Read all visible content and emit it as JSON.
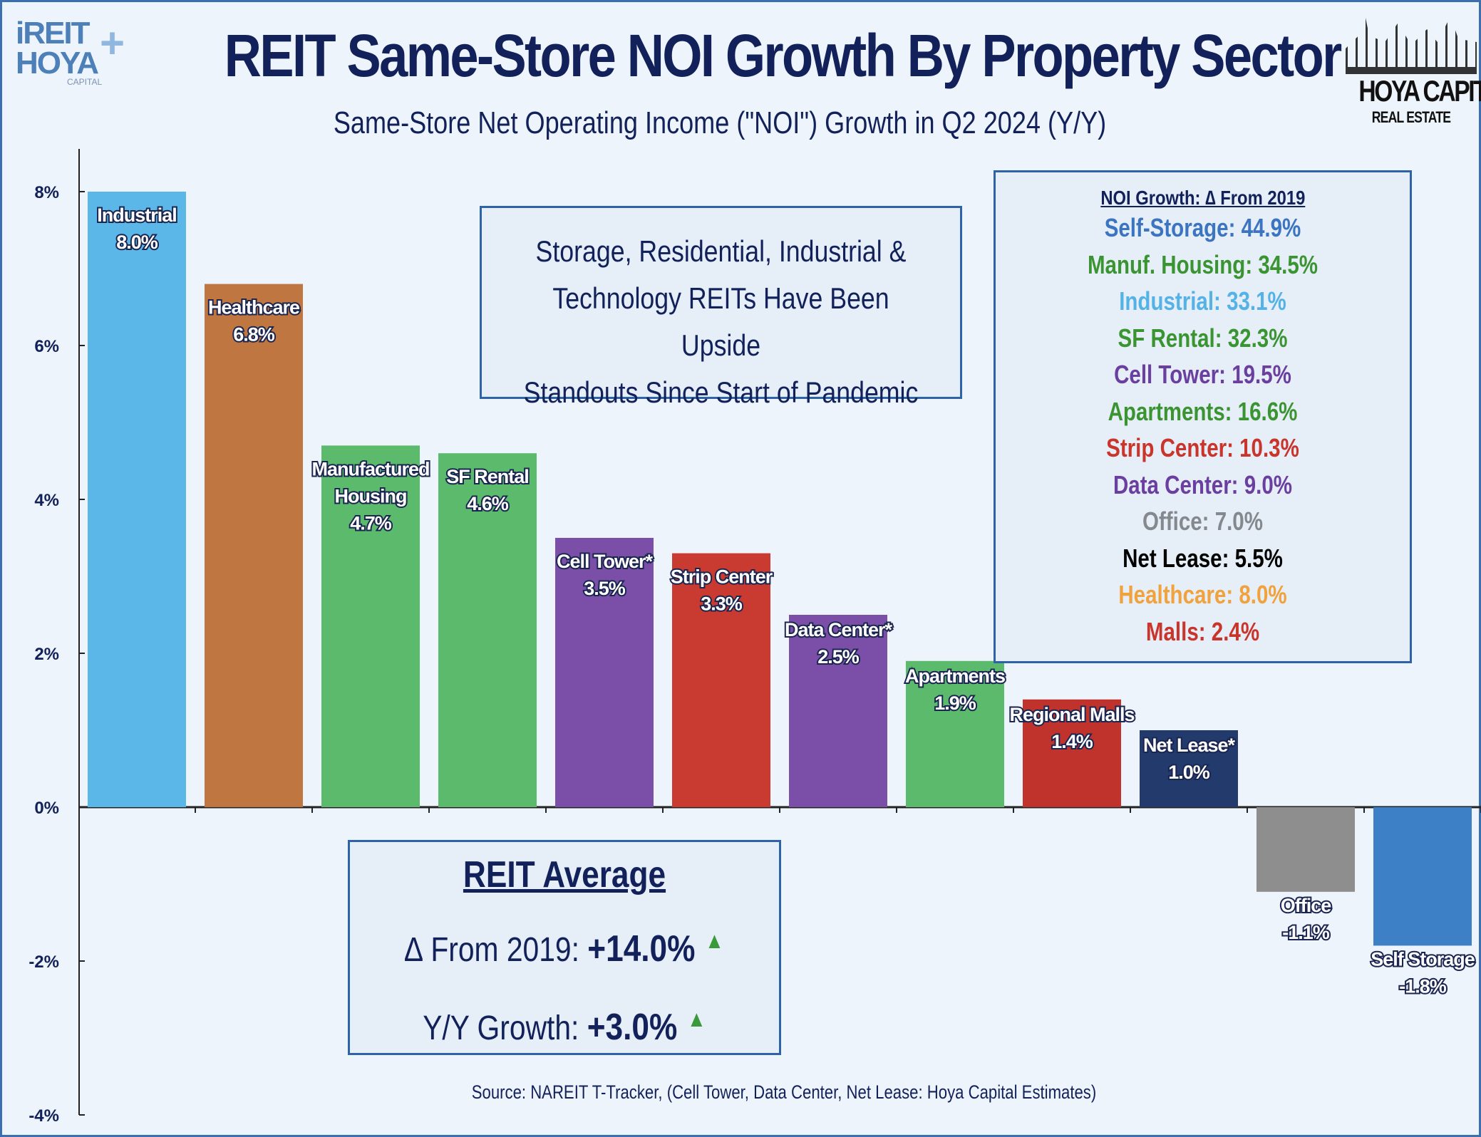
{
  "header": {
    "title": "REIT Same-Store NOI Growth By Property Sector",
    "subtitle": "Same-Store Net Operating Income (\"NOI\") Growth in Q2 2024 (Y/Y)",
    "logo_left": [
      "iREIT",
      "HOYA",
      "CAPITAL"
    ],
    "logo_right": [
      "HOYA CAPITAL",
      "REAL ESTATE"
    ]
  },
  "callout": {
    "lines": [
      "Storage, Residential, Industrial &",
      "Technology REITs Have Been Upside",
      "Standouts Since Start of Pandemic"
    ]
  },
  "noi_box": {
    "heading": "NOI Growth: ∆ From 2019",
    "items": [
      {
        "text": "Self-Storage: 44.9%",
        "color": "#3b74c0"
      },
      {
        "text": "Manuf. Housing: 34.5%",
        "color": "#3a9432"
      },
      {
        "text": "Industrial: 33.1%",
        "color": "#55b2e6"
      },
      {
        "text": "SF Rental: 32.3%",
        "color": "#3a9432"
      },
      {
        "text": "Cell Tower: 19.5%",
        "color": "#6a3fa0"
      },
      {
        "text": "Apartments: 16.6%",
        "color": "#3a9432"
      },
      {
        "text": "Strip Center: 10.3%",
        "color": "#c9352b"
      },
      {
        "text": "Data Center: 9.0%",
        "color": "#6a3fa0"
      },
      {
        "text": "Office: 7.0%",
        "color": "#85898e"
      },
      {
        "text": "Net Lease: 5.5%",
        "color": "#000000"
      },
      {
        "text": "Healthcare: 8.0%",
        "color": "#f0a23c"
      },
      {
        "text": "Malls: 2.4%",
        "color": "#c9352b"
      }
    ]
  },
  "reit_average": {
    "heading": "REIT Average",
    "delta_label": "∆ From 2019: ",
    "delta_value": "+14.0%",
    "yy_label": "Y/Y Growth: ",
    "yy_value": "+3.0%",
    "up_icon": "▲"
  },
  "source": "Source: NAREIT T-Tracker, (Cell Tower, Data Center, Net Lease: Hoya Capital Estimates)",
  "chart_data": {
    "type": "bar",
    "title": "REIT Same-Store NOI Growth By Property Sector",
    "subtitle": "Same-Store Net Operating Income (\"NOI\") Growth in Q2 2024 (Y/Y)",
    "categories": [
      "Industrial",
      "Healthcare",
      "Manufactured Housing",
      "SF Rental",
      "Cell Tower*",
      "Strip Center",
      "Data Center*",
      "Apartments",
      "Regional Malls",
      "Net Lease*",
      "Office",
      "Self Storage"
    ],
    "values": [
      8.0,
      6.8,
      4.7,
      4.6,
      3.5,
      3.3,
      2.5,
      1.9,
      1.4,
      1.0,
      -1.1,
      -1.8
    ],
    "value_labels": [
      "8.0%",
      "6.8%",
      "4.7%",
      "4.6%",
      "3.5%",
      "3.3%",
      "2.5%",
      "1.9%",
      "1.4%",
      "1.0%",
      "-1.1%",
      "-1.8%"
    ],
    "colors": [
      "#5ab7e8",
      "#c07640",
      "#5cba6c",
      "#5cba6c",
      "#7b4fa7",
      "#c93a30",
      "#7b4fa7",
      "#5cba6c",
      "#c0332c",
      "#233a6c",
      "#8e8e8e",
      "#3e80c6"
    ],
    "ylim": [
      -4,
      8
    ],
    "yticks": [
      8,
      6,
      4,
      2,
      0,
      -2,
      -4
    ],
    "ytick_labels": [
      "8%",
      "6%",
      "4%",
      "2%",
      "0%",
      "-2%",
      "-4%"
    ],
    "grid": false,
    "xlabel": "",
    "ylabel": ""
  }
}
